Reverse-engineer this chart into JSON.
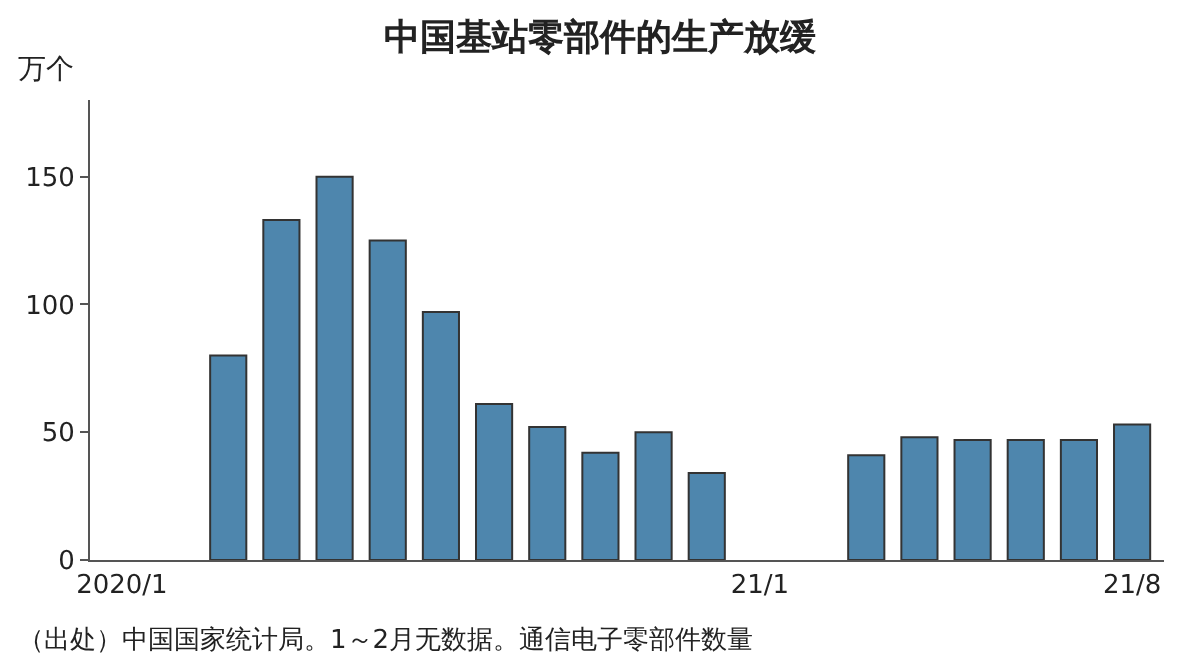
{
  "chart_data": {
    "type": "bar",
    "title": "中国基站零部件的生产放缓",
    "ylabel": "万个",
    "categories": [
      "2020/1",
      null,
      null,
      null,
      null,
      null,
      null,
      null,
      null,
      null,
      null,
      null,
      "21/1",
      null,
      null,
      null,
      null,
      null,
      null,
      "21/8"
    ],
    "values": [
      null,
      null,
      80,
      133,
      150,
      125,
      97,
      61,
      52,
      42,
      50,
      34,
      null,
      null,
      41,
      48,
      47,
      47,
      47,
      53
    ],
    "color": "#4e86ad",
    "ylim": [
      0,
      180
    ],
    "yticks": [
      0,
      50,
      100,
      150
    ],
    "annotations": [
      "（出处）中国国家统计局。1～2月无数据。通信电子零部件数量"
    ]
  }
}
